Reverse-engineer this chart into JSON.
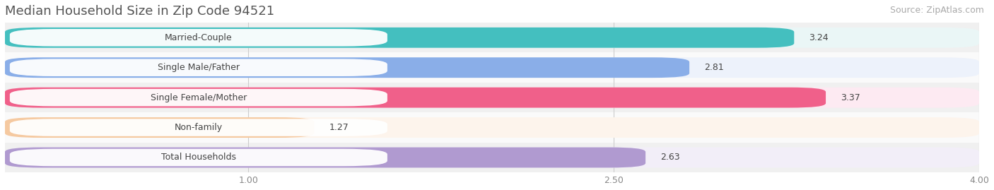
{
  "title": "Median Household Size in Zip Code 94521",
  "source": "Source: ZipAtlas.com",
  "categories": [
    "Married-Couple",
    "Single Male/Father",
    "Single Female/Mother",
    "Non-family",
    "Total Households"
  ],
  "values": [
    3.24,
    2.81,
    3.37,
    1.27,
    2.63
  ],
  "bar_colors": [
    "#44bfbf",
    "#8aaee8",
    "#f0608a",
    "#f5c9a0",
    "#b09ad0"
  ],
  "bg_colors": [
    "#eaf6f6",
    "#edf2fb",
    "#fdeaf2",
    "#fdf4ec",
    "#f2eef8"
  ],
  "label_bg_color": "#ffffff",
  "xlim": [
    0,
    4.0
  ],
  "xticks": [
    1.0,
    2.5,
    4.0
  ],
  "xtick_labels": [
    "1.00",
    "2.50",
    "4.00"
  ],
  "title_fontsize": 13,
  "source_fontsize": 9,
  "label_fontsize": 9,
  "value_fontsize": 9,
  "label_text_color": "#444444",
  "value_text_color": "#444444",
  "background_color": "#ffffff",
  "bar_area_bg": "#f5f5f5",
  "row_bg_even": "#f0f0f0",
  "row_bg_odd": "#fafafa"
}
